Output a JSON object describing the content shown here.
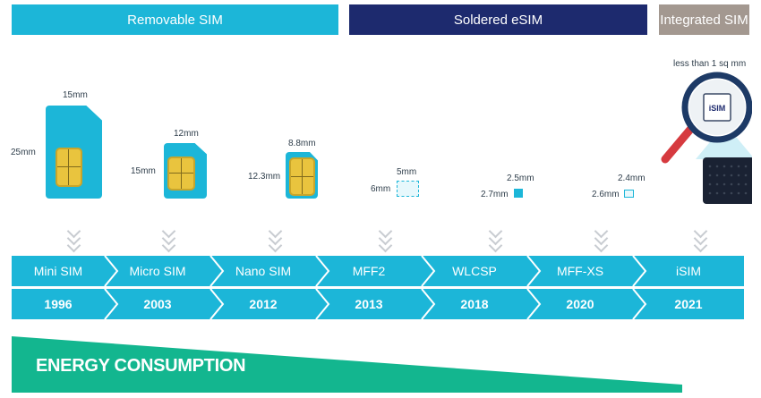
{
  "categories": [
    {
      "label": "Removable SIM",
      "color": "#1cb6d8"
    },
    {
      "label": "Soldered eSIM",
      "color": "#1d2a6e"
    },
    {
      "label": "Integrated SIM",
      "color": "#a39890"
    }
  ],
  "dimensions": {
    "mini": {
      "width": "15mm",
      "height": "25mm"
    },
    "micro": {
      "width": "12mm",
      "height": "15mm"
    },
    "nano": {
      "width": "8.8mm",
      "height": "12.3mm"
    },
    "mff2": {
      "width": "5mm",
      "height": "6mm"
    },
    "wlcsp": {
      "width": "2.5mm",
      "height": "2.7mm"
    },
    "mffxs": {
      "width": "2.4mm",
      "height": "2.6mm"
    },
    "isim": {
      "size": "less than 1 sq mm",
      "chip_label": "iSIM"
    }
  },
  "timeline": [
    {
      "name": "Mini SIM",
      "year": "1996"
    },
    {
      "name": "Micro SIM",
      "year": "2003"
    },
    {
      "name": "Nano SIM",
      "year": "2012"
    },
    {
      "name": "MFF2",
      "year": "2013"
    },
    {
      "name": "WLCSP",
      "year": "2018"
    },
    {
      "name": "MFF-XS",
      "year": "2020"
    },
    {
      "name": "iSIM",
      "year": "2021"
    }
  ],
  "energy": {
    "label": "ENERGY CONSUMPTION",
    "color": "#13b68f"
  },
  "colors": {
    "accent": "#1cb6d8",
    "chip": "#e9c43e",
    "magnifier_handle": "#d63a3f"
  }
}
